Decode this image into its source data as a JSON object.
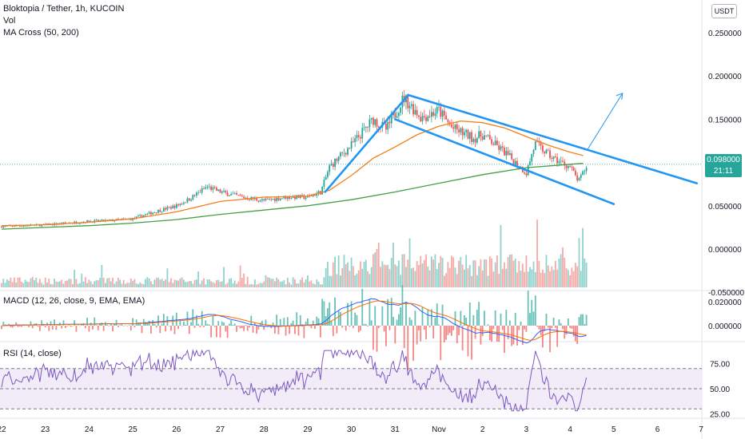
{
  "legend": {
    "title": "Bloktopia / Tether, 1h, KUCOIN",
    "vol": "Vol",
    "ma": "MA Cross (50, 200)",
    "macd": "MACD (12, 26, close, 9, EMA, EMA)",
    "rsi": "RSI (14, close)"
  },
  "currency": "USDT",
  "last_price": {
    "value": "0.098000",
    "countdown": "21:11"
  },
  "colors": {
    "up": "#26a69a",
    "down": "#ef5350",
    "ma50": "#f57f17",
    "ma200": "#43a047",
    "channel": "#2196f3",
    "macd": "#2962ff",
    "signal": "#ff6d00",
    "rsi": "#7e57c2",
    "rsi_band": "#ede7f6"
  },
  "chart_data": {
    "type": "candlestick",
    "x_ticks": [
      "22",
      "23",
      "24",
      "25",
      "26",
      "27",
      "28",
      "29",
      "30",
      "31",
      "Nov",
      "2",
      "3",
      "4",
      "5",
      "6",
      "7"
    ],
    "price_ticks": [
      "0.250000",
      "0.200000",
      "0.150000",
      "0.100000",
      "0.050000",
      "0.000000",
      "-0.050000"
    ],
    "price_axis": {
      "min": -0.05,
      "max": 0.25
    },
    "macd_ticks": [
      "0.020000",
      "0.000000"
    ],
    "rsi_ticks": [
      "75.00",
      "50.00",
      "25.00"
    ],
    "rsi_levels": {
      "upper": 70,
      "middle": 50,
      "lower": 30
    },
    "close_path": [
      [
        22.0,
        0.026
      ],
      [
        22.5,
        0.027
      ],
      [
        23.0,
        0.028
      ],
      [
        23.5,
        0.03
      ],
      [
        24.0,
        0.032
      ],
      [
        24.5,
        0.033
      ],
      [
        25.0,
        0.035
      ],
      [
        25.5,
        0.043
      ],
      [
        26.0,
        0.05
      ],
      [
        26.3,
        0.058
      ],
      [
        26.7,
        0.072
      ],
      [
        27.0,
        0.066
      ],
      [
        27.5,
        0.06
      ],
      [
        28.0,
        0.056
      ],
      [
        28.5,
        0.06
      ],
      [
        29.0,
        0.06
      ],
      [
        29.3,
        0.066
      ],
      [
        29.5,
        0.095
      ],
      [
        30.0,
        0.12
      ],
      [
        30.5,
        0.15
      ],
      [
        30.8,
        0.138
      ],
      [
        31.2,
        0.175
      ],
      [
        31.6,
        0.152
      ],
      [
        32.0,
        0.16
      ],
      [
        32.3,
        0.14
      ],
      [
        32.8,
        0.128
      ],
      [
        33.0,
        0.132
      ],
      [
        33.5,
        0.112
      ],
      [
        34.0,
        0.088
      ],
      [
        34.2,
        0.122
      ],
      [
        34.6,
        0.105
      ],
      [
        35.0,
        0.095
      ],
      [
        35.2,
        0.078
      ],
      [
        35.4,
        0.098
      ]
    ],
    "ma50": [
      [
        22.0,
        0.027
      ],
      [
        23.0,
        0.028
      ],
      [
        24.0,
        0.031
      ],
      [
        25.0,
        0.035
      ],
      [
        26.0,
        0.043
      ],
      [
        27.0,
        0.055
      ],
      [
        28.0,
        0.06
      ],
      [
        29.0,
        0.061
      ],
      [
        29.5,
        0.068
      ],
      [
        30.0,
        0.085
      ],
      [
        30.5,
        0.105
      ],
      [
        31.0,
        0.118
      ],
      [
        31.5,
        0.132
      ],
      [
        32.0,
        0.142
      ],
      [
        32.5,
        0.148
      ],
      [
        33.0,
        0.146
      ],
      [
        33.5,
        0.14
      ],
      [
        34.0,
        0.13
      ],
      [
        34.5,
        0.12
      ],
      [
        35.0,
        0.112
      ],
      [
        35.3,
        0.108
      ]
    ],
    "ma200": [
      [
        22.0,
        0.023
      ],
      [
        23.0,
        0.025
      ],
      [
        24.0,
        0.027
      ],
      [
        25.0,
        0.03
      ],
      [
        26.0,
        0.034
      ],
      [
        27.0,
        0.04
      ],
      [
        28.0,
        0.045
      ],
      [
        29.0,
        0.05
      ],
      [
        30.0,
        0.057
      ],
      [
        31.0,
        0.066
      ],
      [
        32.0,
        0.076
      ],
      [
        33.0,
        0.086
      ],
      [
        34.0,
        0.094
      ],
      [
        35.0,
        0.098
      ],
      [
        35.3,
        0.099
      ]
    ],
    "trendlines": [
      {
        "name": "channel-upper",
        "from": [
          31.3,
          0.178
        ],
        "to": [
          37.9,
          0.076
        ]
      },
      {
        "name": "channel-lower",
        "from": [
          31.0,
          0.15
        ],
        "to": [
          36.0,
          0.052
        ]
      },
      {
        "name": "rally-line",
        "from": [
          29.4,
          0.066
        ],
        "to": [
          31.3,
          0.178
        ]
      },
      {
        "name": "projection-arrow",
        "from": [
          35.4,
          0.115
        ],
        "to": [
          36.2,
          0.18
        ]
      }
    ]
  }
}
